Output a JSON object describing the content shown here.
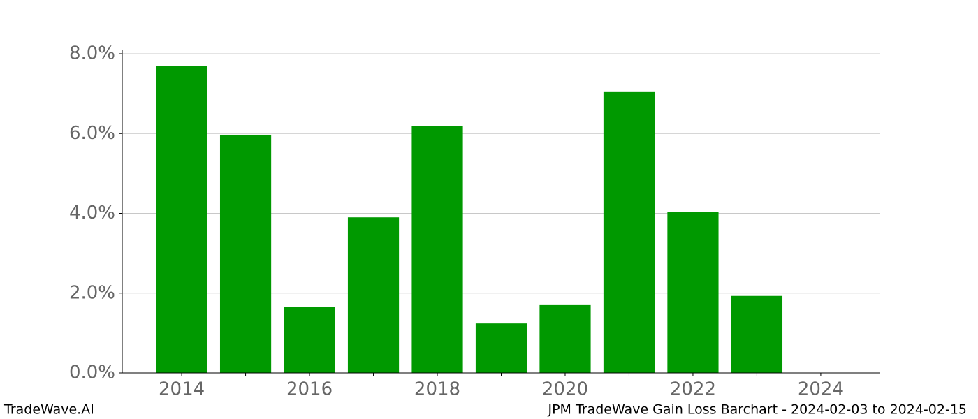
{
  "chart_data": {
    "type": "bar",
    "title": "JPM TradeWave Gain Loss Barchart - 2024-02-03 to 2024-02-15",
    "watermark": "TradeWave.AI",
    "x": [
      2014,
      2015,
      2016,
      2017,
      2018,
      2019,
      2020,
      2021,
      2022,
      2023
    ],
    "values": [
      7.7,
      5.97,
      1.65,
      3.9,
      6.18,
      1.24,
      1.7,
      7.04,
      4.04,
      1.93
    ],
    "color": "#009900",
    "xlim": [
      2013.07,
      2024.93
    ],
    "xticks": [
      2014,
      2016,
      2018,
      2020,
      2022,
      2024
    ],
    "xminorticks": [
      2015,
      2017,
      2019,
      2021,
      2023
    ],
    "ylim": [
      0,
      8
    ],
    "yticks": [
      {
        "value": 0,
        "label": "0.0%"
      },
      {
        "value": 2,
        "label": "2.0%"
      },
      {
        "value": 4,
        "label": "4.0%"
      },
      {
        "value": 6,
        "label": "6.0%"
      },
      {
        "value": 8,
        "label": "8.0%"
      }
    ],
    "grid": true
  }
}
